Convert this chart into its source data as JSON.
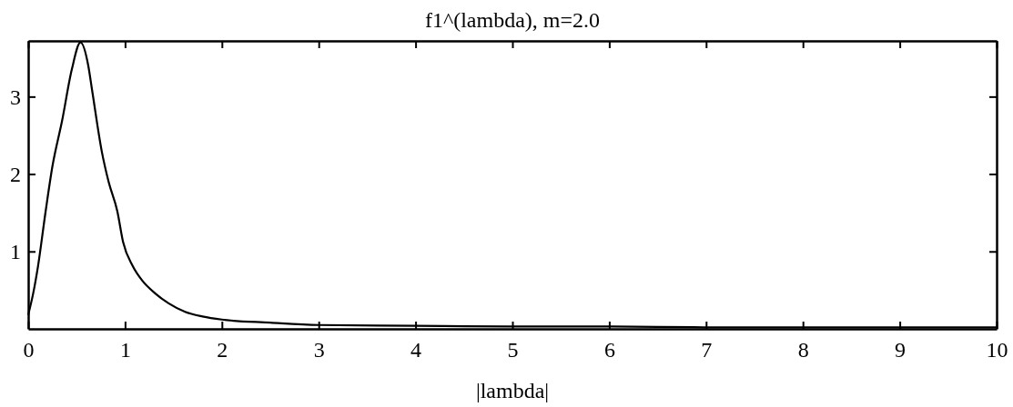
{
  "chart_data": {
    "type": "line",
    "title": "f1^(lambda), m=2.0",
    "xlabel": "|lambda|",
    "x": [
      0,
      0.05,
      0.1,
      0.18,
      0.25,
      0.35,
      0.45,
      0.54,
      0.62,
      0.66,
      0.76,
      0.83,
      0.92,
      0.98,
      1.08,
      1.18,
      1.31,
      1.45,
      1.62,
      1.8,
      2.0,
      2.5,
      3,
      4,
      5,
      6,
      7,
      8,
      9,
      10
    ],
    "series": [
      {
        "color": "#000000",
        "values": [
          0.18,
          0.45,
          0.8,
          1.52,
          2.1,
          2.69,
          3.35,
          3.7,
          3.4,
          3.08,
          2.29,
          1.9,
          1.52,
          1.12,
          0.81,
          0.62,
          0.46,
          0.33,
          0.22,
          0.16,
          0.12,
          0.08,
          0.05,
          0.04,
          0.03,
          0.03,
          0.02,
          0.02,
          0.02,
          0.02
        ]
      }
    ],
    "xlim": [
      0,
      10
    ],
    "xticks": [
      0,
      1,
      2,
      3,
      4,
      5,
      6,
      7,
      8,
      9,
      10
    ],
    "ylim": [
      0,
      3.72
    ],
    "yticks": [
      1,
      2,
      3
    ],
    "grid": false,
    "marker": "none",
    "line_style": "solid"
  }
}
